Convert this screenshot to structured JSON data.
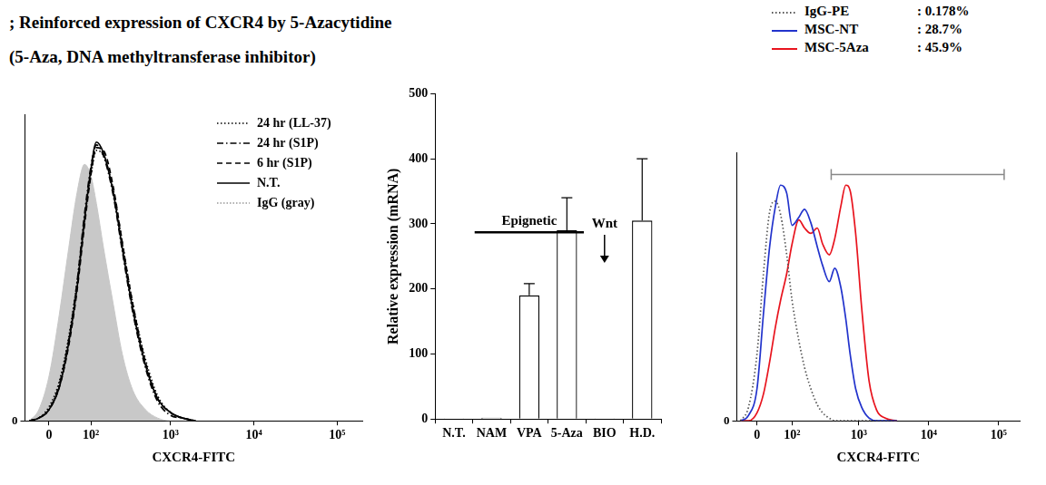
{
  "title": "; Reinforced expression of CXCR4 by 5-Azacytidine",
  "subtitle": "(5-Aza, DNA methyltransferase inhibitor)",
  "chart_data": [
    {
      "type": "line",
      "x_label": "CXCR4-FITC",
      "x": [
        -40,
        -20,
        0,
        20,
        40,
        60,
        80,
        100,
        120,
        150,
        200,
        260,
        350,
        500,
        700,
        1000,
        1400,
        2000
      ],
      "series": [
        {
          "name": "24 hr (LL-37)",
          "color": "#000000",
          "line_style": "dotted",
          "values": [
            0,
            1,
            5,
            14,
            30,
            50,
            72,
            88,
            97,
            95,
            83,
            64,
            42,
            22,
            9,
            3,
            1,
            0
          ]
        },
        {
          "name": "24 hr (S1P)",
          "color": "#000000",
          "line_style": "dashdot",
          "values": [
            0,
            1,
            4,
            13,
            29,
            50,
            74,
            91,
            99,
            95,
            81,
            61,
            39,
            19,
            7,
            2,
            1,
            0
          ]
        },
        {
          "name": "6 hr (S1P)",
          "color": "#000000",
          "line_style": "dashed",
          "values": [
            0,
            1,
            4,
            12,
            27,
            47,
            70,
            88,
            98,
            97,
            84,
            64,
            42,
            21,
            8,
            3,
            1,
            0
          ]
        },
        {
          "name": "N.T.",
          "color": "#000000",
          "line_style": "solid",
          "values": [
            0,
            1,
            4,
            12,
            28,
            48,
            72,
            90,
            100,
            96,
            82,
            62,
            40,
            20,
            8,
            3,
            1,
            0
          ]
        },
        {
          "name": "IgG (gray)",
          "type": "area",
          "color": "#c8c8c8",
          "line_style": "solid",
          "values": [
            0,
            4,
            16,
            38,
            62,
            82,
            92,
            88,
            78,
            62,
            42,
            24,
            11,
            4,
            1,
            0,
            0,
            0
          ]
        }
      ],
      "xlim": [
        -50,
        200000
      ],
      "xticks": [
        0,
        {
          "value": 100,
          "label": "10²"
        },
        {
          "value": 1000,
          "label": "10³"
        },
        {
          "value": 10000,
          "label": "10⁴"
        },
        {
          "value": 100000,
          "label": "10⁵"
        }
      ],
      "ylim": [
        0,
        110
      ],
      "yticks": [
        0
      ],
      "legend": "upper right",
      "grid": false
    },
    {
      "type": "bar",
      "y_label": "Relative expression (mRNA)",
      "categories": [
        "N.T.",
        "NAM",
        "VPA",
        "5-Aza",
        "BIO",
        "H.D."
      ],
      "values": [
        1,
        2,
        190,
        290,
        1,
        305
      ],
      "errors": [
        0,
        0,
        18,
        50,
        0,
        95
      ],
      "color": "#ffffff",
      "ylim": [
        0,
        500
      ],
      "yticks": [
        0,
        100,
        200,
        300,
        400,
        500
      ],
      "grid": false,
      "annotations": [
        {
          "text": "Epignetic",
          "shape": "line",
          "x": [
            "NAM",
            "5-Aza"
          ],
          "y": 287
        },
        {
          "text": "Wnt",
          "shape": "arrow",
          "x": "BIO",
          "y": [
            283,
            240
          ]
        }
      ]
    },
    {
      "type": "line",
      "x_label": "CXCR4-FITC",
      "x": [
        -40,
        -20,
        0,
        15,
        30,
        45,
        60,
        80,
        100,
        130,
        160,
        200,
        250,
        300,
        375,
        450,
        550,
        650,
        750,
        900,
        1100,
        1400,
        1800,
        2400,
        3500
      ],
      "series": [
        {
          "name": "IgG-PE",
          "color": "#555555",
          "line_style": "dotted",
          "percent": 0.178,
          "percent_label": ": 0.178%",
          "values": [
            0,
            5,
            25,
            55,
            78,
            82,
            77,
            62,
            45,
            30,
            20,
            12,
            6,
            3,
            1,
            0,
            0,
            0,
            0,
            0,
            0,
            0,
            0,
            0,
            0
          ]
        },
        {
          "name": "MSC-NT",
          "color": "#2233cc",
          "line_style": "solid",
          "percent": 28.7,
          "percent_label": ": 28.7%",
          "values": [
            0,
            2,
            12,
            40,
            65,
            80,
            88,
            85,
            73,
            76,
            79,
            74,
            65,
            58,
            52,
            57,
            50,
            38,
            25,
            12,
            5,
            1,
            0,
            0,
            0
          ]
        },
        {
          "name": "MSC-5Aza",
          "color": "#e8141e",
          "line_style": "solid",
          "percent": 45.9,
          "percent_label": ": 45.9%",
          "values": [
            0,
            0,
            3,
            10,
            22,
            35,
            45,
            55,
            66,
            75,
            72,
            70,
            72,
            66,
            62,
            68,
            80,
            88,
            86,
            70,
            42,
            15,
            4,
            1,
            0
          ]
        }
      ],
      "gate": {
        "x": [
          400,
          120000
        ],
        "y": 92
      },
      "xlim": [
        -50,
        200000
      ],
      "xticks": [
        0,
        {
          "value": 100,
          "label": "10²"
        },
        {
          "value": 1000,
          "label": "10³"
        },
        {
          "value": 10000,
          "label": "10⁴"
        },
        {
          "value": 100000,
          "label": "10⁵"
        }
      ],
      "ylim": [
        0,
        100
      ],
      "yticks": [
        0
      ],
      "legend": "top",
      "grid": false
    }
  ]
}
